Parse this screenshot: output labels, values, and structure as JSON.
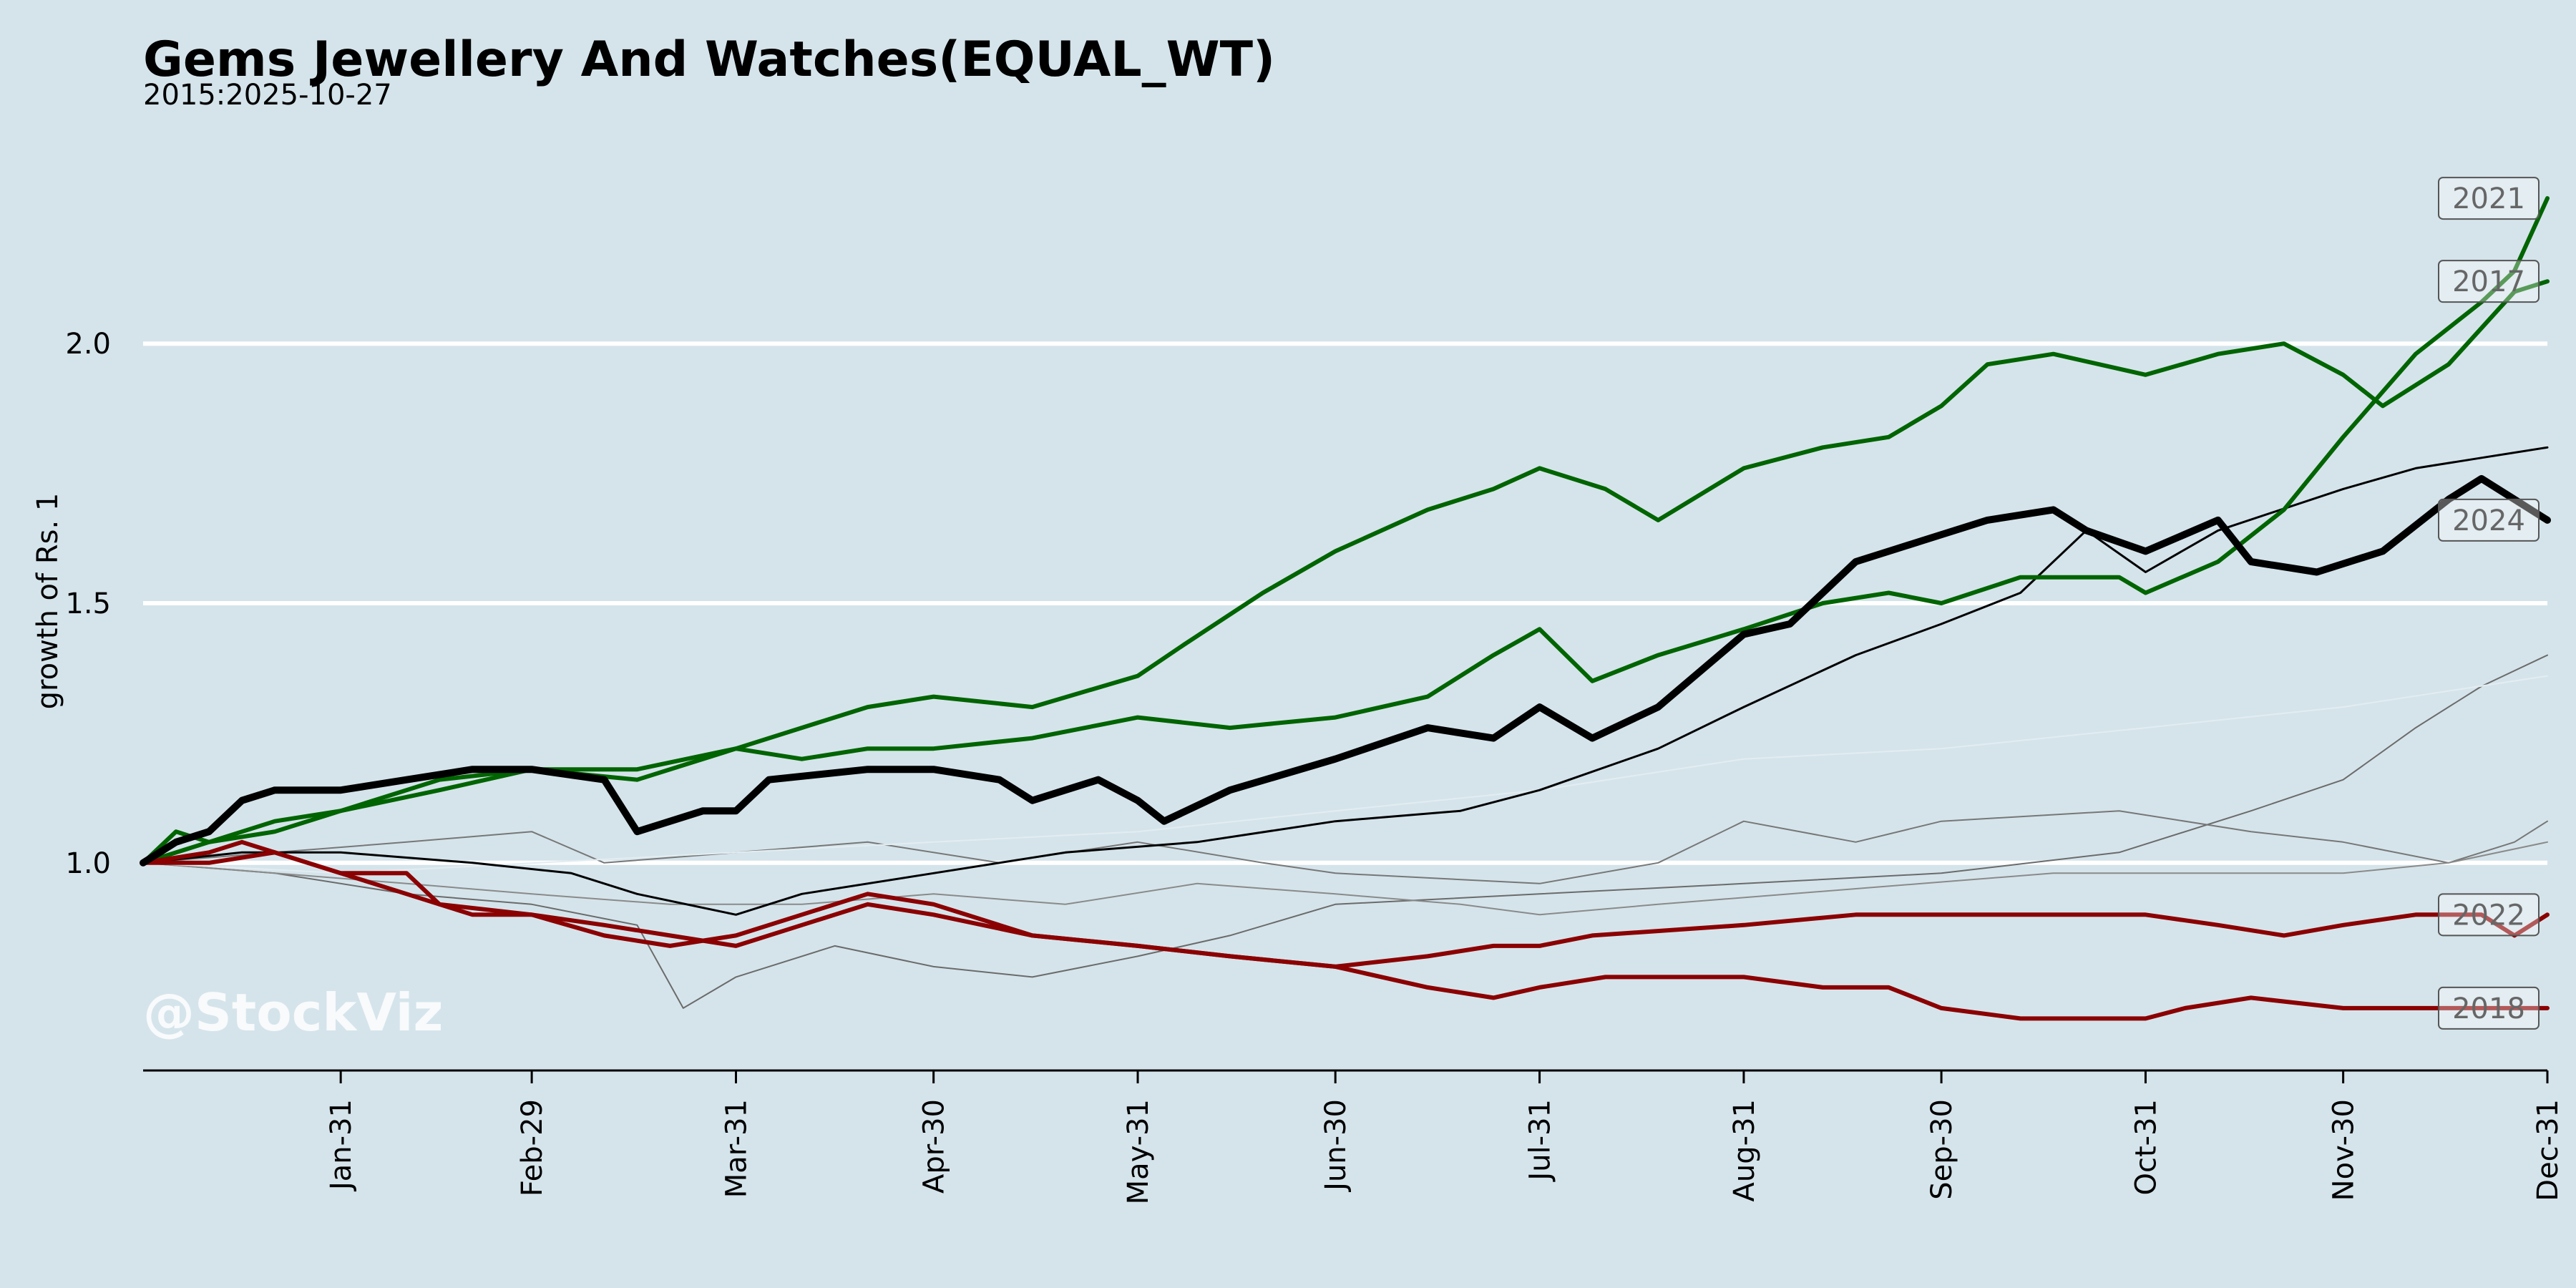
{
  "chart_data": {
    "type": "line",
    "title": "Gems Jewellery And Watches(EQUAL_WT)",
    "subtitle": "2015:2025-10-27",
    "ylabel": "growth of Rs. 1",
    "xlabel": "",
    "watermark": "@StockViz",
    "ylim": [
      0.6,
      2.4
    ],
    "xlim": [
      0,
      365
    ],
    "grid": "horizontal",
    "y_ticks": [
      1.0,
      1.5,
      2.0
    ],
    "x_ticks": [
      {
        "label": "Jan-31",
        "x": 30
      },
      {
        "label": "Feb-29",
        "x": 59
      },
      {
        "label": "Mar-31",
        "x": 90
      },
      {
        "label": "Apr-30",
        "x": 120
      },
      {
        "label": "May-31",
        "x": 151
      },
      {
        "label": "Jun-30",
        "x": 181
      },
      {
        "label": "Jul-31",
        "x": 212
      },
      {
        "label": "Aug-31",
        "x": 243
      },
      {
        "label": "Sep-30",
        "x": 273
      },
      {
        "label": "Oct-31",
        "x": 304
      },
      {
        "label": "Nov-30",
        "x": 334
      },
      {
        "label": "Dec-31",
        "x": 365
      }
    ],
    "series": [
      {
        "name": "2021",
        "labeled": true,
        "color": "#006400",
        "width": 6,
        "points": [
          [
            0,
            1.0
          ],
          [
            5,
            1.06
          ],
          [
            10,
            1.04
          ],
          [
            20,
            1.06
          ],
          [
            30,
            1.1
          ],
          [
            45,
            1.16
          ],
          [
            59,
            1.18
          ],
          [
            75,
            1.16
          ],
          [
            90,
            1.22
          ],
          [
            100,
            1.2
          ],
          [
            110,
            1.22
          ],
          [
            120,
            1.22
          ],
          [
            135,
            1.24
          ],
          [
            151,
            1.28
          ],
          [
            165,
            1.26
          ],
          [
            181,
            1.28
          ],
          [
            195,
            1.32
          ],
          [
            205,
            1.4
          ],
          [
            212,
            1.45
          ],
          [
            220,
            1.35
          ],
          [
            230,
            1.4
          ],
          [
            243,
            1.45
          ],
          [
            255,
            1.5
          ],
          [
            265,
            1.52
          ],
          [
            273,
            1.5
          ],
          [
            285,
            1.55
          ],
          [
            300,
            1.55
          ],
          [
            304,
            1.52
          ],
          [
            315,
            1.58
          ],
          [
            325,
            1.68
          ],
          [
            334,
            1.82
          ],
          [
            345,
            1.98
          ],
          [
            355,
            2.08
          ],
          [
            360,
            2.14
          ],
          [
            365,
            2.28
          ]
        ]
      },
      {
        "name": "2017",
        "labeled": true,
        "color": "#006400",
        "width": 6,
        "points": [
          [
            0,
            1.0
          ],
          [
            10,
            1.04
          ],
          [
            20,
            1.08
          ],
          [
            30,
            1.1
          ],
          [
            45,
            1.14
          ],
          [
            59,
            1.18
          ],
          [
            75,
            1.18
          ],
          [
            90,
            1.22
          ],
          [
            100,
            1.26
          ],
          [
            110,
            1.3
          ],
          [
            120,
            1.32
          ],
          [
            135,
            1.3
          ],
          [
            151,
            1.36
          ],
          [
            158,
            1.42
          ],
          [
            170,
            1.52
          ],
          [
            181,
            1.6
          ],
          [
            195,
            1.68
          ],
          [
            205,
            1.72
          ],
          [
            212,
            1.76
          ],
          [
            222,
            1.72
          ],
          [
            230,
            1.66
          ],
          [
            243,
            1.76
          ],
          [
            255,
            1.8
          ],
          [
            265,
            1.82
          ],
          [
            273,
            1.88
          ],
          [
            280,
            1.96
          ],
          [
            290,
            1.98
          ],
          [
            304,
            1.94
          ],
          [
            315,
            1.98
          ],
          [
            325,
            2.0
          ],
          [
            334,
            1.94
          ],
          [
            340,
            1.88
          ],
          [
            350,
            1.96
          ],
          [
            360,
            2.1
          ],
          [
            365,
            2.12
          ]
        ]
      },
      {
        "name": "2024",
        "labeled": true,
        "color": "#000000",
        "width": 10,
        "points": [
          [
            0,
            1.0
          ],
          [
            5,
            1.04
          ],
          [
            10,
            1.06
          ],
          [
            15,
            1.12
          ],
          [
            20,
            1.14
          ],
          [
            30,
            1.14
          ],
          [
            40,
            1.16
          ],
          [
            50,
            1.18
          ],
          [
            59,
            1.18
          ],
          [
            70,
            1.16
          ],
          [
            75,
            1.06
          ],
          [
            85,
            1.1
          ],
          [
            90,
            1.1
          ],
          [
            95,
            1.16
          ],
          [
            110,
            1.18
          ],
          [
            120,
            1.18
          ],
          [
            130,
            1.16
          ],
          [
            135,
            1.12
          ],
          [
            145,
            1.16
          ],
          [
            151,
            1.12
          ],
          [
            155,
            1.08
          ],
          [
            165,
            1.14
          ],
          [
            181,
            1.2
          ],
          [
            195,
            1.26
          ],
          [
            205,
            1.24
          ],
          [
            212,
            1.3
          ],
          [
            220,
            1.24
          ],
          [
            230,
            1.3
          ],
          [
            243,
            1.44
          ],
          [
            250,
            1.46
          ],
          [
            260,
            1.58
          ],
          [
            270,
            1.62
          ],
          [
            280,
            1.66
          ],
          [
            290,
            1.68
          ],
          [
            295,
            1.64
          ],
          [
            304,
            1.6
          ],
          [
            315,
            1.66
          ],
          [
            320,
            1.58
          ],
          [
            330,
            1.56
          ],
          [
            340,
            1.6
          ],
          [
            350,
            1.7
          ],
          [
            355,
            1.74
          ],
          [
            360,
            1.7
          ],
          [
            365,
            1.66
          ]
        ]
      },
      {
        "name": "unlabeled-black",
        "labeled": false,
        "color": "#000000",
        "width": 3,
        "points": [
          [
            0,
            1.0
          ],
          [
            15,
            1.02
          ],
          [
            30,
            1.02
          ],
          [
            50,
            1.0
          ],
          [
            65,
            0.98
          ],
          [
            75,
            0.94
          ],
          [
            90,
            0.9
          ],
          [
            100,
            0.94
          ],
          [
            120,
            0.98
          ],
          [
            140,
            1.02
          ],
          [
            160,
            1.04
          ],
          [
            181,
            1.08
          ],
          [
            200,
            1.1
          ],
          [
            212,
            1.14
          ],
          [
            230,
            1.22
          ],
          [
            243,
            1.3
          ],
          [
            260,
            1.4
          ],
          [
            273,
            1.46
          ],
          [
            285,
            1.52
          ],
          [
            295,
            1.64
          ],
          [
            304,
            1.56
          ],
          [
            315,
            1.64
          ],
          [
            334,
            1.72
          ],
          [
            345,
            1.76
          ],
          [
            355,
            1.78
          ],
          [
            365,
            1.8
          ]
        ]
      },
      {
        "name": "unlabeled-gray-1",
        "labeled": false,
        "color": "#6b6b6b",
        "width": 2,
        "points": [
          [
            0,
            1.0
          ],
          [
            20,
            0.98
          ],
          [
            40,
            0.94
          ],
          [
            59,
            0.92
          ],
          [
            75,
            0.88
          ],
          [
            82,
            0.72
          ],
          [
            90,
            0.78
          ],
          [
            105,
            0.84
          ],
          [
            120,
            0.8
          ],
          [
            135,
            0.78
          ],
          [
            151,
            0.82
          ],
          [
            165,
            0.86
          ],
          [
            181,
            0.92
          ],
          [
            212,
            0.94
          ],
          [
            243,
            0.96
          ],
          [
            273,
            0.98
          ],
          [
            300,
            1.02
          ],
          [
            320,
            1.1
          ],
          [
            334,
            1.16
          ],
          [
            345,
            1.26
          ],
          [
            355,
            1.34
          ],
          [
            365,
            1.4
          ]
        ]
      },
      {
        "name": "unlabeled-gray-2",
        "labeled": false,
        "color": "#777777",
        "width": 2,
        "points": [
          [
            0,
            1.0
          ],
          [
            20,
            1.02
          ],
          [
            40,
            1.04
          ],
          [
            59,
            1.06
          ],
          [
            70,
            1.0
          ],
          [
            90,
            1.02
          ],
          [
            110,
            1.04
          ],
          [
            130,
            1.0
          ],
          [
            151,
            1.04
          ],
          [
            170,
            1.0
          ],
          [
            181,
            0.98
          ],
          [
            212,
            0.96
          ],
          [
            230,
            1.0
          ],
          [
            243,
            1.08
          ],
          [
            260,
            1.04
          ],
          [
            273,
            1.08
          ],
          [
            300,
            1.1
          ],
          [
            320,
            1.06
          ],
          [
            334,
            1.04
          ],
          [
            350,
            1.0
          ],
          [
            360,
            1.04
          ],
          [
            365,
            1.08
          ]
        ]
      },
      {
        "name": "unlabeled-gray-3",
        "labeled": false,
        "color": "#8a8a8a",
        "width": 2,
        "points": [
          [
            0,
            1.0
          ],
          [
            20,
            0.98
          ],
          [
            40,
            0.96
          ],
          [
            59,
            0.94
          ],
          [
            80,
            0.92
          ],
          [
            100,
            0.92
          ],
          [
            120,
            0.94
          ],
          [
            140,
            0.92
          ],
          [
            160,
            0.96
          ],
          [
            181,
            0.94
          ],
          [
            200,
            0.92
          ],
          [
            212,
            0.9
          ],
          [
            230,
            0.92
          ],
          [
            250,
            0.94
          ],
          [
            270,
            0.96
          ],
          [
            290,
            0.98
          ],
          [
            304,
            0.98
          ],
          [
            320,
            0.98
          ],
          [
            334,
            0.98
          ],
          [
            350,
            1.0
          ],
          [
            365,
            1.04
          ]
        ]
      },
      {
        "name": "unlabeled-faint",
        "labeled": false,
        "color": "#e3edf1",
        "width": 2,
        "points": [
          [
            0,
            1.0
          ],
          [
            30,
            0.98
          ],
          [
            60,
            1.0
          ],
          [
            90,
            1.02
          ],
          [
            120,
            1.04
          ],
          [
            151,
            1.06
          ],
          [
            181,
            1.1
          ],
          [
            212,
            1.14
          ],
          [
            243,
            1.2
          ],
          [
            273,
            1.22
          ],
          [
            304,
            1.26
          ],
          [
            334,
            1.3
          ],
          [
            365,
            1.36
          ]
        ]
      },
      {
        "name": "2022",
        "labeled": true,
        "color": "#8b0000",
        "width": 6,
        "points": [
          [
            0,
            1.0
          ],
          [
            10,
            1.0
          ],
          [
            20,
            1.02
          ],
          [
            30,
            0.98
          ],
          [
            40,
            0.98
          ],
          [
            45,
            0.92
          ],
          [
            50,
            0.9
          ],
          [
            59,
            0.9
          ],
          [
            70,
            0.88
          ],
          [
            80,
            0.86
          ],
          [
            90,
            0.84
          ],
          [
            100,
            0.88
          ],
          [
            110,
            0.92
          ],
          [
            120,
            0.9
          ],
          [
            135,
            0.86
          ],
          [
            151,
            0.84
          ],
          [
            165,
            0.82
          ],
          [
            181,
            0.8
          ],
          [
            195,
            0.82
          ],
          [
            205,
            0.84
          ],
          [
            212,
            0.84
          ],
          [
            220,
            0.86
          ],
          [
            243,
            0.88
          ],
          [
            260,
            0.9
          ],
          [
            273,
            0.9
          ],
          [
            290,
            0.9
          ],
          [
            304,
            0.9
          ],
          [
            315,
            0.88
          ],
          [
            325,
            0.86
          ],
          [
            334,
            0.88
          ],
          [
            345,
            0.9
          ],
          [
            355,
            0.9
          ],
          [
            360,
            0.86
          ],
          [
            365,
            0.9
          ]
        ]
      },
      {
        "name": "2018",
        "labeled": true,
        "color": "#8b0000",
        "width": 6,
        "points": [
          [
            0,
            1.0
          ],
          [
            10,
            1.02
          ],
          [
            15,
            1.04
          ],
          [
            25,
            1.0
          ],
          [
            35,
            0.96
          ],
          [
            45,
            0.92
          ],
          [
            59,
            0.9
          ],
          [
            70,
            0.86
          ],
          [
            80,
            0.84
          ],
          [
            90,
            0.86
          ],
          [
            100,
            0.9
          ],
          [
            110,
            0.94
          ],
          [
            120,
            0.92
          ],
          [
            135,
            0.86
          ],
          [
            151,
            0.84
          ],
          [
            165,
            0.82
          ],
          [
            181,
            0.8
          ],
          [
            195,
            0.76
          ],
          [
            205,
            0.74
          ],
          [
            212,
            0.76
          ],
          [
            222,
            0.78
          ],
          [
            243,
            0.78
          ],
          [
            255,
            0.76
          ],
          [
            265,
            0.76
          ],
          [
            273,
            0.72
          ],
          [
            285,
            0.7
          ],
          [
            295,
            0.7
          ],
          [
            304,
            0.7
          ],
          [
            310,
            0.72
          ],
          [
            320,
            0.74
          ],
          [
            334,
            0.72
          ],
          [
            345,
            0.72
          ],
          [
            355,
            0.72
          ],
          [
            365,
            0.72
          ]
        ]
      }
    ]
  }
}
